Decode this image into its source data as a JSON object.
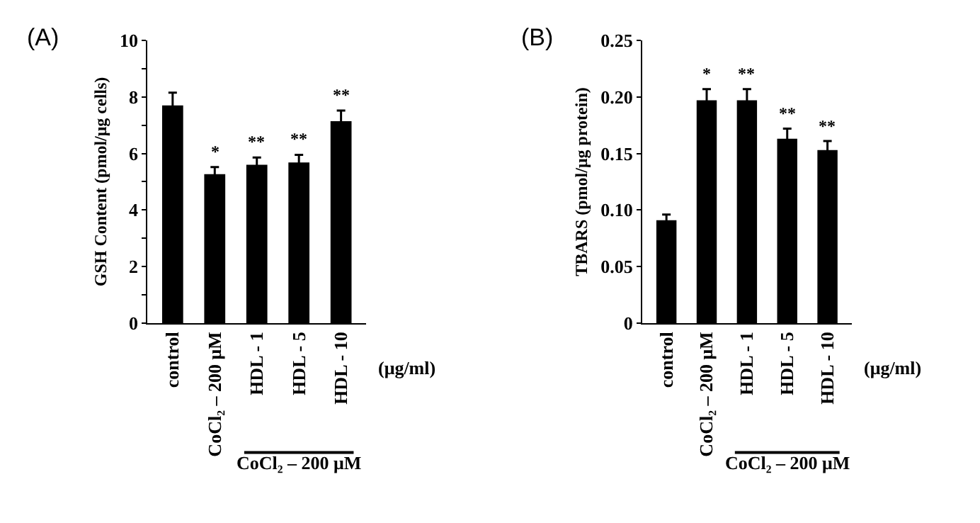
{
  "chart_data": [
    {
      "type": "bar",
      "ylabel": "GSH Content (pmol/μg cells)",
      "categories": [
        "control",
        "CoCl₂ – 200 μM",
        "HDL - 1",
        "HDL - 5",
        "HDL - 10"
      ],
      "values": [
        7.7,
        5.27,
        5.6,
        5.68,
        7.14
      ],
      "errors": [
        0.45,
        0.25,
        0.26,
        0.27,
        0.38
      ],
      "color": "#000000",
      "ylim": [
        0,
        10
      ],
      "yticks": [
        0,
        {
          "value": 1,
          "label": null
        },
        2,
        {
          "value": 3,
          "label": null
        },
        4,
        {
          "value": 5,
          "label": null
        },
        6,
        {
          "value": 7,
          "label": null
        },
        8,
        {
          "value": 9,
          "label": null
        },
        10
      ],
      "value_labels": [
        null,
        "*",
        "**",
        "**",
        "**"
      ],
      "annotations": [
        "(A)",
        "(μg/ml)",
        "CoCl₂ – 200 μM"
      ]
    },
    {
      "type": "bar",
      "ylabel": "TBARS (pmol/μg protein)",
      "categories": [
        "control",
        "CoCl₂ – 200 μM",
        "HDL - 1",
        "HDL - 5",
        "HDL - 10"
      ],
      "values": [
        0.091,
        0.197,
        0.197,
        0.163,
        0.153
      ],
      "errors": [
        0.005,
        0.01,
        0.01,
        0.009,
        0.008
      ],
      "color": "#000000",
      "ylim": [
        0,
        0.25
      ],
      "yticks": [
        {
          "value": 0,
          "label": "0"
        },
        {
          "value": 0.05,
          "label": "0.05"
        },
        {
          "value": 0.1,
          "label": "0.10"
        },
        {
          "value": 0.15,
          "label": "0.15"
        },
        {
          "value": 0.2,
          "label": "0.20"
        },
        {
          "value": 0.25,
          "label": "0.25"
        }
      ],
      "value_labels": [
        null,
        "*",
        "**",
        "**",
        "**"
      ],
      "annotations": [
        "(B)",
        "(μg/ml)",
        "CoCl₂ – 200 μM"
      ]
    }
  ]
}
